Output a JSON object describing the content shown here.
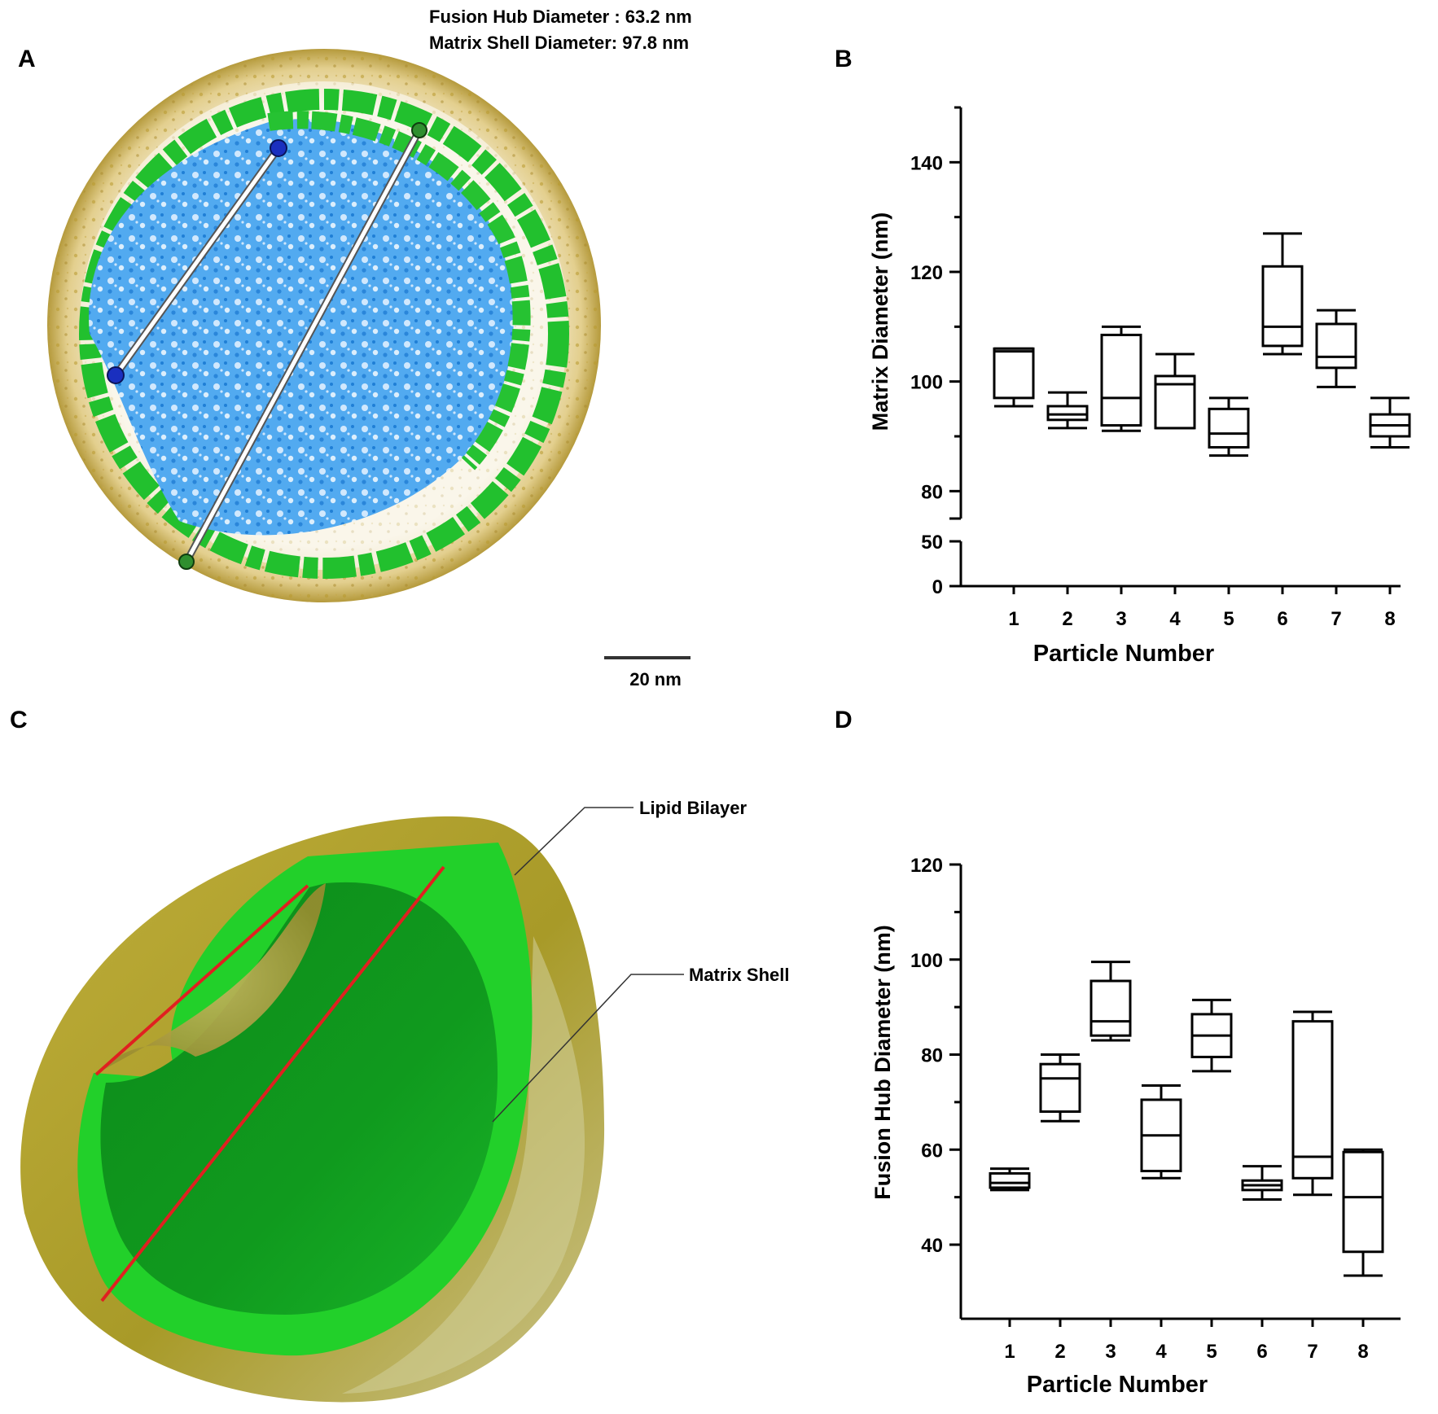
{
  "panels": {
    "A": {
      "letter": "A",
      "header_line1": "Fusion Hub Diameter : 63.2 nm",
      "header_line2": "Matrix Shell Diameter: 97.8 nm",
      "scale_bar_label": "20 nm",
      "colors": {
        "lipid": "#c9b25a",
        "matrix": "#2ec43a",
        "hub": "#3a9ae8",
        "hub_marker": "#1a2fbf",
        "shell_marker": "#2f8f2f"
      }
    },
    "B": {
      "letter": "B"
    },
    "C": {
      "letter": "C",
      "label_lipid": "Lipid Bilayer",
      "label_matrix": "Matrix Shell",
      "colors": {
        "lipid": "#b8a934",
        "matrix": "#22d02a",
        "diameter_line": "#e02020"
      }
    },
    "D": {
      "letter": "D"
    }
  },
  "chart_data": [
    {
      "panel": "B",
      "type": "box",
      "xlabel": "Particle Number",
      "ylabel": "Matrix Diameter (nm)",
      "categories": [
        "1",
        "2",
        "3",
        "4",
        "5",
        "6",
        "7",
        "8"
      ],
      "y_axis_segments": [
        {
          "range": [
            0,
            50
          ],
          "ticks": [
            "0",
            "50"
          ]
        },
        {
          "range": [
            75,
            150
          ],
          "ticks": [
            "80",
            "100",
            "120",
            "140"
          ]
        }
      ],
      "boxes": [
        {
          "min": 95.5,
          "q1": 97,
          "median": 105.5,
          "q3": 106,
          "max": 106
        },
        {
          "min": 91.5,
          "q1": 93,
          "median": 94,
          "q3": 95.5,
          "max": 98
        },
        {
          "min": 91,
          "q1": 92,
          "median": 97,
          "q3": 108.5,
          "max": 110
        },
        {
          "min": 91.5,
          "q1": 91.5,
          "median": 99.5,
          "q3": 101,
          "max": 105
        },
        {
          "min": 86.5,
          "q1": 88,
          "median": 90.5,
          "q3": 95,
          "max": 97
        },
        {
          "min": 105,
          "q1": 106.5,
          "median": 110,
          "q3": 121,
          "max": 127
        },
        {
          "min": 99,
          "q1": 102.5,
          "median": 104.5,
          "q3": 110.5,
          "max": 113
        },
        {
          "min": 88,
          "q1": 90,
          "median": 92,
          "q3": 94,
          "max": 97
        }
      ]
    },
    {
      "panel": "D",
      "type": "box",
      "xlabel": "Particle Number",
      "ylabel": "Fusion Hub Diameter  (nm)",
      "categories": [
        "1",
        "2",
        "3",
        "4",
        "5",
        "6",
        "7",
        "8"
      ],
      "ylim": [
        26,
        120
      ],
      "yticks": [
        "40",
        "60",
        "80",
        "100",
        "120"
      ],
      "boxes": [
        {
          "min": 51.5,
          "q1": 52,
          "median": 53,
          "q3": 55,
          "max": 56
        },
        {
          "min": 66,
          "q1": 68,
          "median": 75,
          "q3": 78,
          "max": 80
        },
        {
          "min": 83,
          "q1": 84,
          "median": 87,
          "q3": 95.5,
          "max": 99.5
        },
        {
          "min": 54,
          "q1": 55.5,
          "median": 63,
          "q3": 70.5,
          "max": 73.5
        },
        {
          "min": 76.5,
          "q1": 79.5,
          "median": 84,
          "q3": 88.5,
          "max": 91.5
        },
        {
          "min": 49.5,
          "q1": 51.5,
          "median": 52.5,
          "q3": 53.5,
          "max": 56.5
        },
        {
          "min": 50.5,
          "q1": 54,
          "median": 58.5,
          "q3": 87,
          "max": 89
        },
        {
          "min": 33.5,
          "q1": 38.5,
          "median": 50,
          "q3": 59.5,
          "max": 60
        }
      ]
    }
  ]
}
